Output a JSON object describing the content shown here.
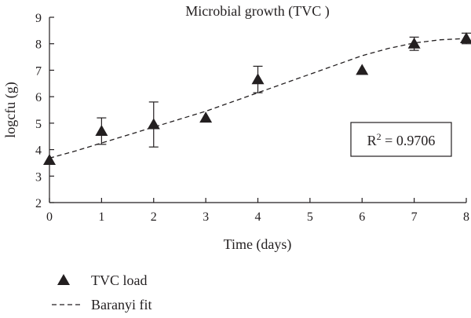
{
  "chart_data": {
    "type": "scatter",
    "title": "Microbial growth (TVC )",
    "xlabel": "Time (days)",
    "ylabel": "logcfu (g)",
    "xlim": [
      0,
      8
    ],
    "ylim": [
      2,
      9
    ],
    "x_ticks": [
      "0",
      "1",
      "2",
      "3",
      "4",
      "5",
      "6",
      "7",
      "8"
    ],
    "y_ticks": [
      "2",
      "3",
      "4",
      "5",
      "6",
      "7",
      "8",
      "9"
    ],
    "series": [
      {
        "name": "TVC load",
        "marker": "triangle",
        "points": [
          {
            "x": 0,
            "y": 3.6,
            "err": 0
          },
          {
            "x": 1,
            "y": 4.7,
            "err": 0.5
          },
          {
            "x": 2,
            "y": 4.95,
            "err": 0.85
          },
          {
            "x": 3,
            "y": 5.2,
            "err": 0
          },
          {
            "x": 4,
            "y": 6.65,
            "err": 0.5
          },
          {
            "x": 6,
            "y": 7.0,
            "err": 0
          },
          {
            "x": 7,
            "y": 8.0,
            "err": 0.25
          },
          {
            "x": 8,
            "y": 8.2,
            "err": 0.2
          }
        ]
      },
      {
        "name": "Baranyi fit",
        "line_style": "dashed",
        "points": [
          {
            "x": 0,
            "y": 3.68
          },
          {
            "x": 0.5,
            "y": 3.95
          },
          {
            "x": 1,
            "y": 4.25
          },
          {
            "x": 1.5,
            "y": 4.55
          },
          {
            "x": 2,
            "y": 4.85
          },
          {
            "x": 2.5,
            "y": 5.15
          },
          {
            "x": 3,
            "y": 5.45
          },
          {
            "x": 3.5,
            "y": 5.8
          },
          {
            "x": 4,
            "y": 6.15
          },
          {
            "x": 4.5,
            "y": 6.5
          },
          {
            "x": 5,
            "y": 6.85
          },
          {
            "x": 5.5,
            "y": 7.2
          },
          {
            "x": 6,
            "y": 7.55
          },
          {
            "x": 6.5,
            "y": 7.82
          },
          {
            "x": 7,
            "y": 8.03
          },
          {
            "x": 7.5,
            "y": 8.15
          },
          {
            "x": 8,
            "y": 8.2
          }
        ]
      }
    ],
    "annotation": {
      "text_base": "R",
      "superscript": "2",
      "text_rest": " = 0.9706"
    },
    "legend_placement": "bottom-left",
    "colors": {
      "ink": "#231f20"
    }
  }
}
